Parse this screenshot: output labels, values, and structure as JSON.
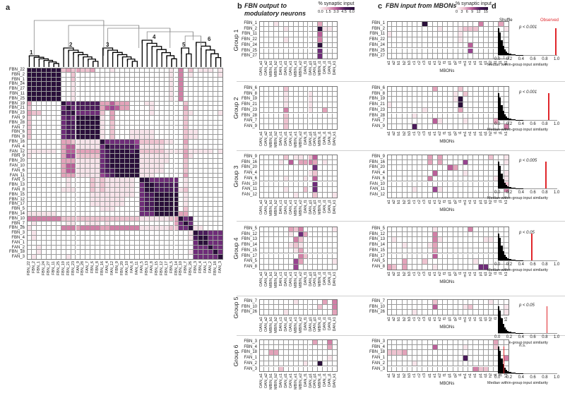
{
  "panels": {
    "a": "a",
    "b": "b",
    "c": "c",
    "d": "d"
  },
  "panel_b": {
    "title_line1": "FBN output to",
    "title_line2": "modulatory neurons",
    "colorbar_title": "% synaptic input",
    "colorbar_ticks": [
      "0.0",
      "1.5",
      "3.0",
      "4.5",
      "6.0"
    ],
    "columns": [
      "OAN_a1",
      "OAN_a2",
      "MBIN_b1",
      "MBIN_b2",
      "DAN_c1",
      "DAN_d1",
      "OAN_e1",
      "MBIN_e1",
      "MBIN_e2",
      "DAN_f1",
      "DAN_g1",
      "OAN_g1",
      "MBIN_i1",
      "DAN_i1",
      "DAN_j1",
      "DAN_k1"
    ]
  },
  "panel_c": {
    "title": "FBN input from MBONs",
    "colorbar_title": "% synaptic input",
    "colorbar_ticks": [
      "0",
      "3",
      "6",
      "9",
      "12",
      "15"
    ],
    "xlabel": "MBONs",
    "columns": [
      "a1",
      "a2",
      "b1",
      "b2",
      "b3",
      "c1",
      "c2",
      "c3",
      "d1",
      "e1",
      "e2",
      "f1",
      "g1",
      "g2",
      "i1",
      "m1",
      "n1",
      "o1",
      "p1",
      "q1",
      "h2",
      "i1",
      "j1",
      "k1"
    ]
  },
  "panel_d": {
    "shuffle_label": "Shuffle",
    "observed_label": "Observed",
    "xlabel": "Median within-group input similarity",
    "xticks": [
      "0.0",
      "0.2",
      "0.4",
      "0.6",
      "0.8",
      "1.0"
    ],
    "shuffle_hist_relative": [
      1.0,
      0.85,
      0.55,
      0.35,
      0.22,
      0.14,
      0.09,
      0.06,
      0.04,
      0.03,
      0.02,
      0.015,
      0.01,
      0.008,
      0.006,
      0.004,
      0.003,
      0.002,
      0.002,
      0.001
    ],
    "observed_color": "#e0262b"
  },
  "colorscale": [
    "#ffffff",
    "#f7e4ea",
    "#eec3d0",
    "#e3a3ba",
    "#d17fa6",
    "#b95e98",
    "#974390",
    "#6e2c78",
    "#4a1b5a",
    "#2a0f3a"
  ],
  "groups": [
    {
      "label": "Group 1",
      "p": "p < 0.001",
      "observed": 0.97,
      "rows": [
        "FBN_1",
        "FBN_2",
        "FBN_11",
        "FBN_22",
        "FBN_24",
        "FBN_25",
        "FBN_27"
      ],
      "b": [
        "0001000000003000",
        "0000010000009110",
        "0000000000005000",
        "0000010000004000",
        "0000000000009000",
        "0000000000007000",
        "0000000000007000"
      ],
      "c": [
        "000000090000000000400030",
        "000000000010001222000001",
        "100000000000001000000000",
        "000000000000001000000000",
        "000000000000000050000000",
        "000000000000000060000000",
        "000000000000000000000000"
      ]
    },
    {
      "label": "Group 2",
      "p": "p < 0.001",
      "observed": 0.85,
      "rows": [
        "FBN_6",
        "FBN_8",
        "FBN_19",
        "FBN_21",
        "FBN_23",
        "FBN_28",
        "FAN_7",
        "FAN_9"
      ],
      "b": [
        "0000020000000000",
        "0000010000100000",
        "0000010000100000",
        "0000010000100000",
        "0000040000100300",
        "0000020000000000",
        "0000020000000000",
        "0000020000000000"
      ],
      "c": [
        "000000000300002000000000",
        "000000000000010200000000",
        "000000000000019000000000",
        "100000000000009000000000",
        "000000010000003000000000",
        "000001000000000000000000",
        "000000000510000100000300",
        "000008000000000000000004"
      ]
    },
    {
      "label": "Group 3",
      "p": "p < 0.005",
      "observed": 0.8,
      "rows": [
        "FBN_9",
        "FBN_16",
        "FBN_20",
        "FAN_4",
        "FAN_6",
        "FAN_10",
        "FAN_11",
        "FAN_12"
      ],
      "b": [
        "0000020110250000",
        "0000105033430100",
        "0000000000070000",
        "0000000000120000",
        "0000010001050000",
        "0000000000070000",
        "0000010002070000",
        "0000000100020001"
      ],
      "c": [
        "000000003030000000002001",
        "000000003030000600000001",
        "000000000000530000000000",
        "000000000500000100000001",
        "000000004000000000000101",
        "000000000000000000000002",
        "000001000610000000000004",
        "000000000000000000000000"
      ]
    },
    {
      "label": "Group 4",
      "p": "p < 0.05",
      "observed": 0.56,
      "rows": [
        "FBN_5",
        "FBN_12",
        "FBN_13",
        "FBN_14",
        "FBN_15",
        "FBN_17",
        "FAN_5",
        "FAN_8"
      ],
      "b": [
        "0000003240000001",
        "0000001073000000",
        "0000000420000000",
        "0000001210000000",
        "0000000130000000",
        "0000000042000000",
        "0000000630000001",
        "0000000600000000"
      ],
      "c": [
        "000000000100000040000000",
        "000000000400000000000000",
        "010000000410000000011000",
        "000100001300000000000000",
        "000000000300000000000000",
        "000000000500000000000000",
        "000300020000000001000000",
        "320300000100000000770000"
      ]
    },
    {
      "label": "Group 5",
      "p": "p < 0.05",
      "observed": 0.82,
      "rows": [
        "FBN_7",
        "FBN_10",
        "FBN_26"
      ],
      "b": [
        "0000000100000304",
        "0000000000002004",
        "0000010000000003"
      ],
      "c": [
        "000000000200000000001000",
        "000000000500000120000001",
        "000001000000000000000001"
      ]
    },
    {
      "label": "Group 6",
      "p": "n.s.",
      "observed": 0.09,
      "rows": [
        "FBN_3",
        "FBN_4",
        "FBN_18",
        "FAN_1",
        "FAN_2",
        "FAN_3"
      ],
      "b": [
        "0000000000030040",
        "0000000000000030",
        "0033000000000000",
        "0000000000000010",
        "0000000001009000",
        "0000200000000000"
      ],
      "c": [
        "000000000000000000000300",
        "000000000500000100000200",
        "222300000000000000000000",
        "000000000000000800000004",
        "000001000000000000000000",
        "000000000000000004220000"
      ]
    }
  ],
  "panel_a": {
    "cluster_labels": [
      "1",
      "2",
      "3",
      "4",
      "5",
      "6"
    ],
    "neurons": [
      "FBN_22",
      "FBN_2",
      "FBN_1",
      "FBN_24",
      "FBN_27",
      "FBN_11",
      "FBN_25",
      "FBN_19",
      "FBN_21",
      "FBN_23",
      "FAN_9",
      "FBN_28",
      "FAN_7",
      "FBN_6",
      "FBN_8",
      "FBN_16",
      "FAN_4",
      "FAN_12",
      "FBN_9",
      "FBN_20",
      "FAN_10",
      "FAN_6",
      "FAN_11",
      "FAN_5",
      "FBN_13",
      "FAN_8",
      "FBN_15",
      "FBN_12",
      "FBN_17",
      "FBN_5",
      "FBN_14",
      "FBN_10",
      "FBN_7",
      "FBN_26",
      "FBN_3",
      "FBN_4",
      "FAN_1",
      "FAN_2",
      "FBN_18",
      "FAN_3"
    ],
    "cluster_sizes": [
      7,
      8,
      8,
      8,
      3,
      6
    ],
    "similarity_levels": [
      "9999999 23232230 00100000 00000010 402 011101",
      "9999999 00200000 00000000 00000010 401 000001",
      "9999999 00200000 00000000 00000010 400 000000",
      "9999999 00100000 00000000 00000010 400 000000",
      "9999999 00100000 00000000 00000010 400 000000",
      "9999999 00100000 00000000 00000010 400 000000",
      "9999999 00100000 00000000 00000010 400 000000",
      "3000000 97888888 33533300 01100000 020 000000",
      "2000000 79788888 35653300 00100000 030 000000",
      "3220000 88977777 20300000 00100000 021 000001",
      "2000000 78799999 10300000 00000000 020 000000",
      "2000000 78899999 10200000 00000000 020 000000",
      "2000000 78899999 10200000 00000000 020 000000",
      "2000000 78899999 10200011 11100000 021 100000",
      "2000000 78899999 10200011 11100000 021 100000",
      "0000000 33211111 97777776 22222110 030 000000",
      "0000000 35511111 79888887 11111000 020 000000",
      "1111110 35533333 78999989 22222111 131 111101",
      "1000000 36622222 78999999 11111100 031 000000",
      "0000000 33311111 78999999 11111100 020 000000",
      "0000000 35511111 78999999 11111000 020 000000",
      "0000000 35511111 78899999 11111000 020 000000",
      "0000000 33311111 67899999 11100000 030 000000",
      "0000000 01000021 21111110 99777777 010 000000",
      "0000000 01000021 21111110 79988888 010 000000",
      "0000000 11100021 21111110 79988888 120 000000",
      "0000000 00000011 11111110 78899999 010 000000",
      "0000000 00000011 11111000 78899999 010 000000",
      "0000000 00000011 11111000 78899999 010 000000",
      "0000000 00000000 11100000 78899999 020 000000",
      "1111110 00000000 00000000 77799999 330 000000",
      "4444444 22222222 22222222 11111123 978 000000",
      "0100000 01100111 01000000 00000003 797 000000",
      "1000000 44434444 33444444 11111122 779 110000",
      "0100000 00000000 00000000 00000000 001 988777",
      "0100000 00000000 00000000 00000000 001 899777",
      "0000000 00000000 00000000 00000000 000 799777",
      "0010000 00000000 00000000 00000000 000 777977",
      "0010000 00000000 00000000 00000000 001 777797",
      "0100000 01000000 00000000 00000000 000 777779"
    ]
  }
}
